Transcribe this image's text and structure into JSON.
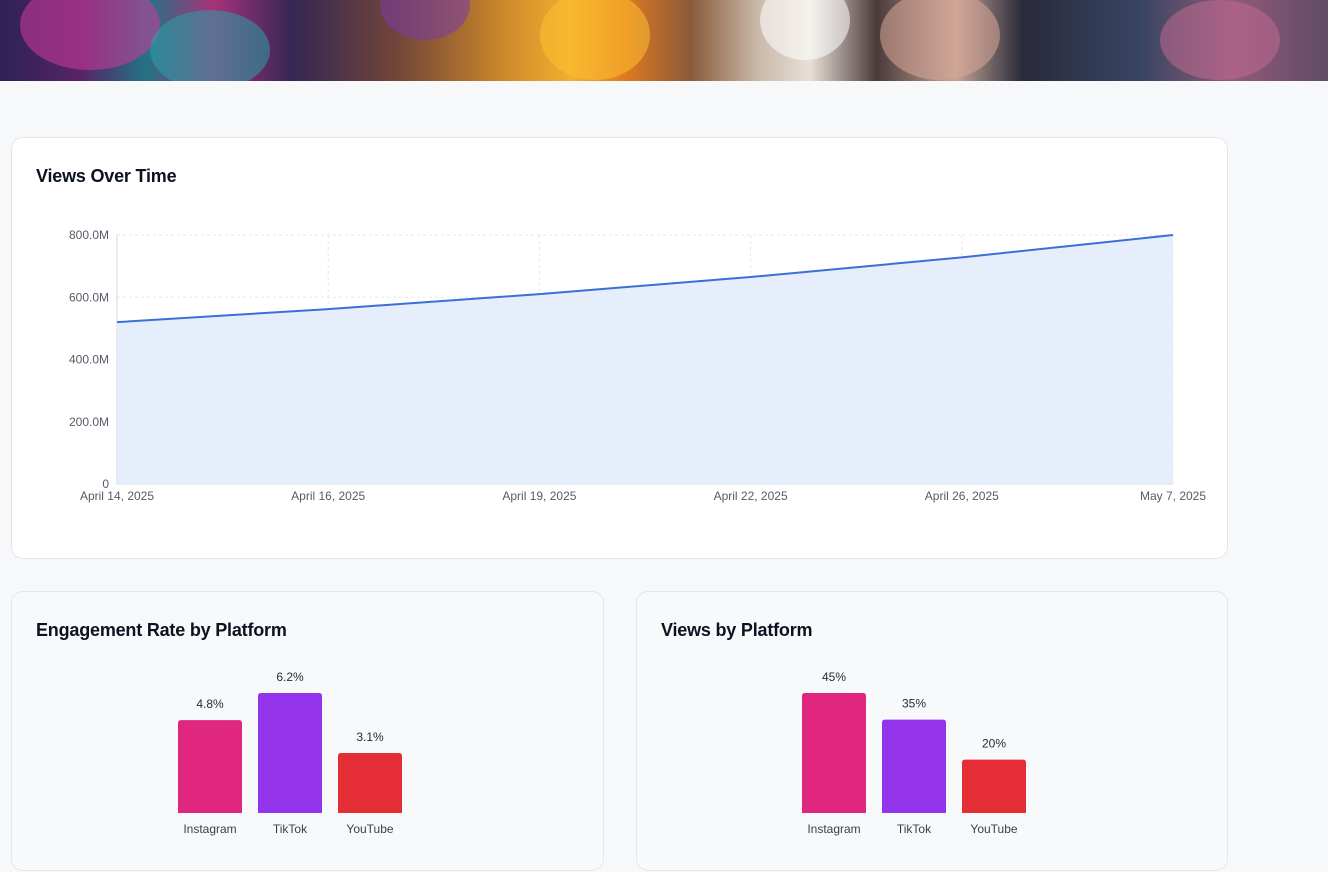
{
  "hero": {
    "image_alt": "Game characters banner"
  },
  "views_over_time": {
    "title": "Views Over Time",
    "colors": {
      "line": "#3b6fd8",
      "fill": "#e5edfc"
    }
  },
  "engagement_by_platform": {
    "title": "Engagement Rate by Platform"
  },
  "views_by_platform": {
    "title": "Views by Platform"
  },
  "chart_data": [
    {
      "type": "area",
      "title": "Views Over Time",
      "x": [
        "April 14, 2025",
        "April 16, 2025",
        "April 19, 2025",
        "April 22, 2025",
        "April 26, 2025",
        "May 7, 2025"
      ],
      "series": [
        {
          "values": [
            520000000,
            562000000,
            610000000,
            665000000,
            728000000,
            800000000
          ]
        }
      ],
      "y_ticks": [
        "0",
        "200.0M",
        "400.0M",
        "600.0M",
        "800.0M"
      ],
      "ylim": [
        0,
        800000000
      ],
      "grid": true,
      "xlabel": "",
      "ylabel": ""
    },
    {
      "type": "bar",
      "title": "Engagement Rate by Platform",
      "categories": [
        "Instagram",
        "TikTok",
        "YouTube"
      ],
      "values": [
        4.8,
        6.2,
        3.1
      ],
      "labels": [
        "4.8%",
        "6.2%",
        "3.1%"
      ],
      "colors": [
        "#e0267f",
        "#9333ea",
        "#e52d36"
      ]
    },
    {
      "type": "bar",
      "title": "Views by Platform",
      "categories": [
        "Instagram",
        "TikTok",
        "YouTube"
      ],
      "values": [
        45,
        35,
        20
      ],
      "labels": [
        "45%",
        "35%",
        "20%"
      ],
      "colors": [
        "#e0267f",
        "#9333ea",
        "#e52d36"
      ]
    }
  ]
}
